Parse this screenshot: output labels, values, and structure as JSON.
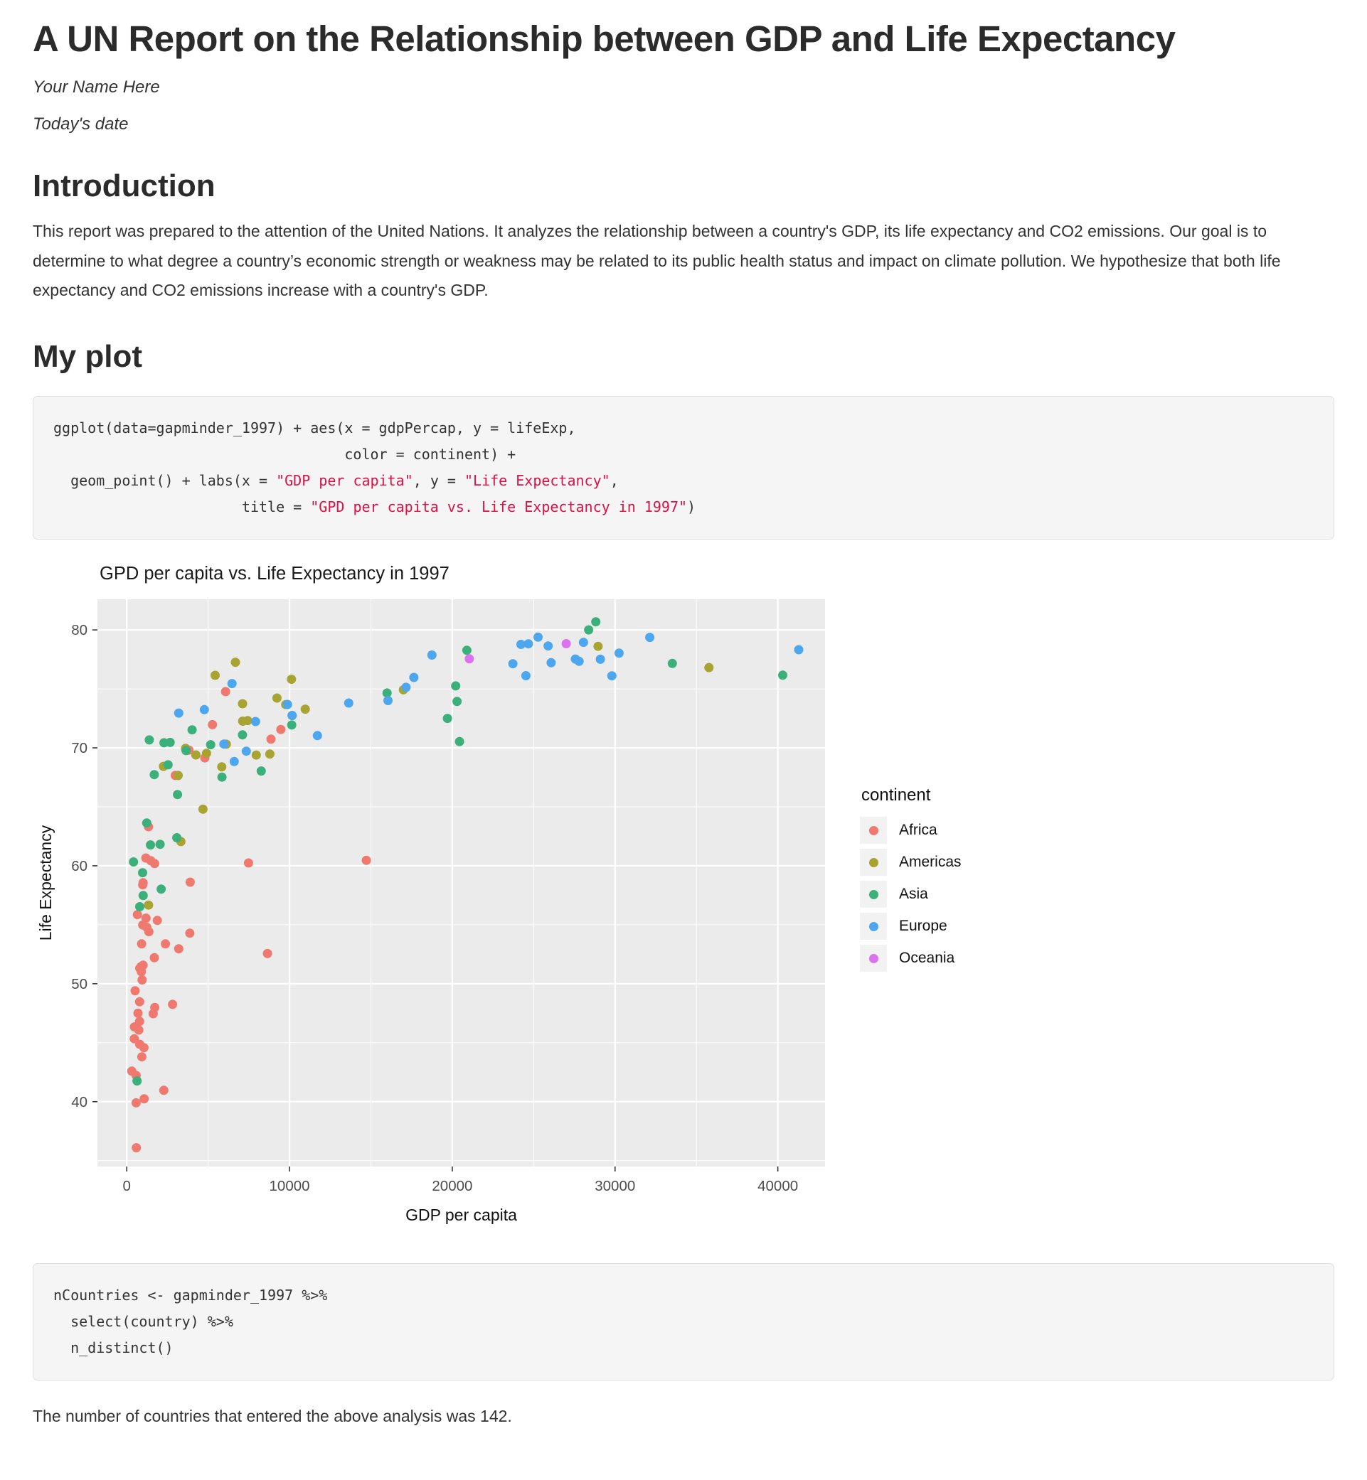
{
  "page": {
    "title": "A UN Report on the Relationship between GDP and Life Expectancy",
    "author": "Your Name Here",
    "date": "Today's date"
  },
  "sections": {
    "introduction": {
      "heading": "Introduction",
      "body": "This report was prepared to the attention of the United Nations. It analyzes the relationship between a country's GDP, its life expectancy and CO2 emissions. Our goal is to determine to what degree a country’s economic strength or weakness may be related to its public health status and impact on climate pollution. We hypothesize that both life expectancy and CO2 emissions increase with a country's GDP."
    },
    "my_plot": {
      "heading": "My plot"
    }
  },
  "code_blocks": [
    {
      "lines": [
        [
          {
            "text": "ggplot(data=gapminder_1997) + aes(x = gdpPercap, y = lifeExp,",
            "type": "plain"
          }
        ],
        [
          {
            "text": "                                  color = continent) +",
            "type": "plain"
          }
        ],
        [
          {
            "text": "  geom_point() + labs(x = ",
            "type": "plain"
          },
          {
            "text": "\"GDP per capita\"",
            "type": "string"
          },
          {
            "text": ", y = ",
            "type": "plain"
          },
          {
            "text": "\"Life Expectancy\"",
            "type": "string"
          },
          {
            "text": ",",
            "type": "plain"
          }
        ],
        [
          {
            "text": "                      title = ",
            "type": "plain"
          },
          {
            "text": "\"GPD per capita vs. Life Expectancy in 1997\"",
            "type": "string"
          },
          {
            "text": ")",
            "type": "plain"
          }
        ]
      ]
    },
    {
      "lines": [
        [
          {
            "text": "nCountries <- gapminder_1997 %>%",
            "type": "plain"
          }
        ],
        [
          {
            "text": "  select(country) %>%",
            "type": "plain"
          }
        ],
        [
          {
            "text": "  n_distinct()",
            "type": "plain"
          }
        ]
      ]
    }
  ],
  "closing_text": "The number of countries that entered the above analysis was 142.",
  "chart_data": {
    "type": "scatter",
    "title": "GPD per capita vs. Life Expectancy in 1997",
    "xlabel": "GDP per capita",
    "ylabel": "Life Expectancy",
    "x_ticks": [
      0,
      10000,
      20000,
      30000,
      40000
    ],
    "y_ticks": [
      40,
      50,
      60,
      70,
      80
    ],
    "x_minor_ticks": [
      5000,
      15000,
      25000,
      35000
    ],
    "y_minor_ticks": [
      35,
      45,
      55,
      65,
      75
    ],
    "xlim": [
      -1800,
      42900
    ],
    "ylim": [
      34.5,
      82.6
    ],
    "grid": true,
    "panel_background": "#EBEBEB",
    "gridline_color": "#FFFFFF",
    "tick_label_color": "#4d4d4d",
    "legend_position": "right",
    "legend_title": "continent",
    "point_radius": 6.5,
    "series": [
      {
        "name": "Africa",
        "color": "#F0796F",
        "points": [
          [
            4797,
            69.15
          ],
          [
            2277,
            40.96
          ],
          [
            1233,
            54.78
          ],
          [
            8647,
            52.56
          ],
          [
            946,
            50.32
          ],
          [
            463,
            45.33
          ],
          [
            1694,
            52.2
          ],
          [
            741,
            46.07
          ],
          [
            1005,
            51.57
          ],
          [
            1174,
            60.66
          ],
          [
            312,
            42.59
          ],
          [
            3193,
            52.96
          ],
          [
            1724,
            47.99
          ],
          [
            2377,
            53.38
          ],
          [
            3825,
            69.81
          ],
          [
            2814,
            48.25
          ],
          [
            913,
            53.38
          ],
          [
            516,
            49.4
          ],
          [
            14723,
            60.46
          ],
          [
            654,
            55.86
          ],
          [
            1005,
            58.56
          ],
          [
            888,
            51.46
          ],
          [
            797,
            44.87
          ],
          [
            1360,
            54.41
          ],
          [
            1186,
            55.56
          ],
          [
            576,
            42.22
          ],
          [
            9467,
            71.56
          ],
          [
            985,
            54.98
          ],
          [
            692,
            47.5
          ],
          [
            895,
            51.02
          ],
          [
            1483,
            60.43
          ],
          [
            8860,
            70.74
          ],
          [
            2982,
            67.66
          ],
          [
            472,
            46.34
          ],
          [
            3900,
            58.61
          ],
          [
            798,
            51.31
          ],
          [
            1625,
            47.46
          ],
          [
            6072,
            74.77
          ],
          [
            590,
            36.09
          ],
          [
            1339,
            63.31
          ],
          [
            1712,
            60.19
          ],
          [
            575,
            39.9
          ],
          [
            927,
            43.8
          ],
          [
            7479,
            60.24
          ],
          [
            1877,
            55.37
          ],
          [
            3877,
            54.29
          ],
          [
            789,
            48.47
          ],
          [
            982,
            58.39
          ],
          [
            5264,
            71.97
          ],
          [
            1056,
            44.58
          ],
          [
            1072,
            40.24
          ],
          [
            792,
            46.81
          ]
        ]
      },
      {
        "name": "Americas",
        "color": "#A9A432",
        "points": [
          [
            10967,
            73.28
          ],
          [
            3326,
            62.05
          ],
          [
            7958,
            69.39
          ],
          [
            28955,
            78.61
          ],
          [
            10118,
            75.82
          ],
          [
            6117,
            70.31
          ],
          [
            6677,
            77.26
          ],
          [
            5432,
            76.15
          ],
          [
            3614,
            69.96
          ],
          [
            7429,
            72.31
          ],
          [
            4903,
            69.54
          ],
          [
            4684,
            64.8
          ],
          [
            1342,
            56.67
          ],
          [
            3160,
            67.66
          ],
          [
            7122,
            72.26
          ],
          [
            9767,
            73.67
          ],
          [
            2253,
            68.43
          ],
          [
            7114,
            73.74
          ],
          [
            4247,
            69.4
          ],
          [
            5838,
            68.39
          ],
          [
            16999,
            74.92
          ],
          [
            8793,
            69.47
          ],
          [
            35767,
            76.81
          ],
          [
            9230,
            74.22
          ],
          [
            10165,
            72.74
          ]
        ]
      },
      {
        "name": "Asia",
        "color": "#3BB07A",
        "points": [
          [
            635,
            41.76
          ],
          [
            20292,
            73.93
          ],
          [
            973,
            59.41
          ],
          [
            801,
            56.53
          ],
          [
            2289,
            70.43
          ],
          [
            28378,
            80.0
          ],
          [
            1459,
            61.77
          ],
          [
            3119,
            66.04
          ],
          [
            8264,
            68.04
          ],
          [
            3076,
            62.38
          ],
          [
            20897,
            78.27
          ],
          [
            28817,
            80.69
          ],
          [
            3645,
            69.77
          ],
          [
            1691,
            67.73
          ],
          [
            15994,
            74.65
          ],
          [
            40301,
            76.16
          ],
          [
            5155,
            70.27
          ],
          [
            10139,
            71.94
          ],
          [
            1226,
            63.63
          ],
          [
            415,
            60.33
          ],
          [
            1011,
            57.48
          ],
          [
            19702,
            72.5
          ],
          [
            2049,
            61.82
          ],
          [
            2537,
            68.56
          ],
          [
            20445,
            70.53
          ],
          [
            33519,
            77.16
          ],
          [
            2664,
            70.46
          ],
          [
            4014,
            71.53
          ],
          [
            20207,
            75.25
          ],
          [
            5853,
            67.52
          ],
          [
            1386,
            70.67
          ],
          [
            7111,
            71.1
          ],
          [
            2117,
            58.02
          ]
        ]
      },
      {
        "name": "Europe",
        "color": "#4DA7EE",
        "points": [
          [
            3193,
            72.95
          ],
          [
            29096,
            77.51
          ],
          [
            27561,
            77.53
          ],
          [
            4766,
            73.24
          ],
          [
            5970,
            70.32
          ],
          [
            9876,
            73.68
          ],
          [
            16049,
            74.01
          ],
          [
            29804,
            76.11
          ],
          [
            23724,
            77.13
          ],
          [
            25890,
            78.64
          ],
          [
            27789,
            77.34
          ],
          [
            18748,
            77.87
          ],
          [
            11713,
            71.04
          ],
          [
            28061,
            78.95
          ],
          [
            24522,
            76.12
          ],
          [
            24675,
            78.82
          ],
          [
            6466,
            75.45
          ],
          [
            30246,
            78.03
          ],
          [
            41283,
            78.32
          ],
          [
            10160,
            72.75
          ],
          [
            17641,
            75.97
          ],
          [
            7347,
            69.72
          ],
          [
            7914,
            72.23
          ],
          [
            13639,
            73.8
          ],
          [
            17161,
            75.13
          ],
          [
            24219,
            78.77
          ],
          [
            25267,
            79.39
          ],
          [
            32135,
            79.37
          ],
          [
            6601,
            68.84
          ],
          [
            26075,
            77.22
          ]
        ]
      },
      {
        "name": "Oceania",
        "color": "#DB72EE",
        "points": [
          [
            26998,
            78.83
          ],
          [
            21050,
            77.55
          ]
        ]
      }
    ]
  }
}
